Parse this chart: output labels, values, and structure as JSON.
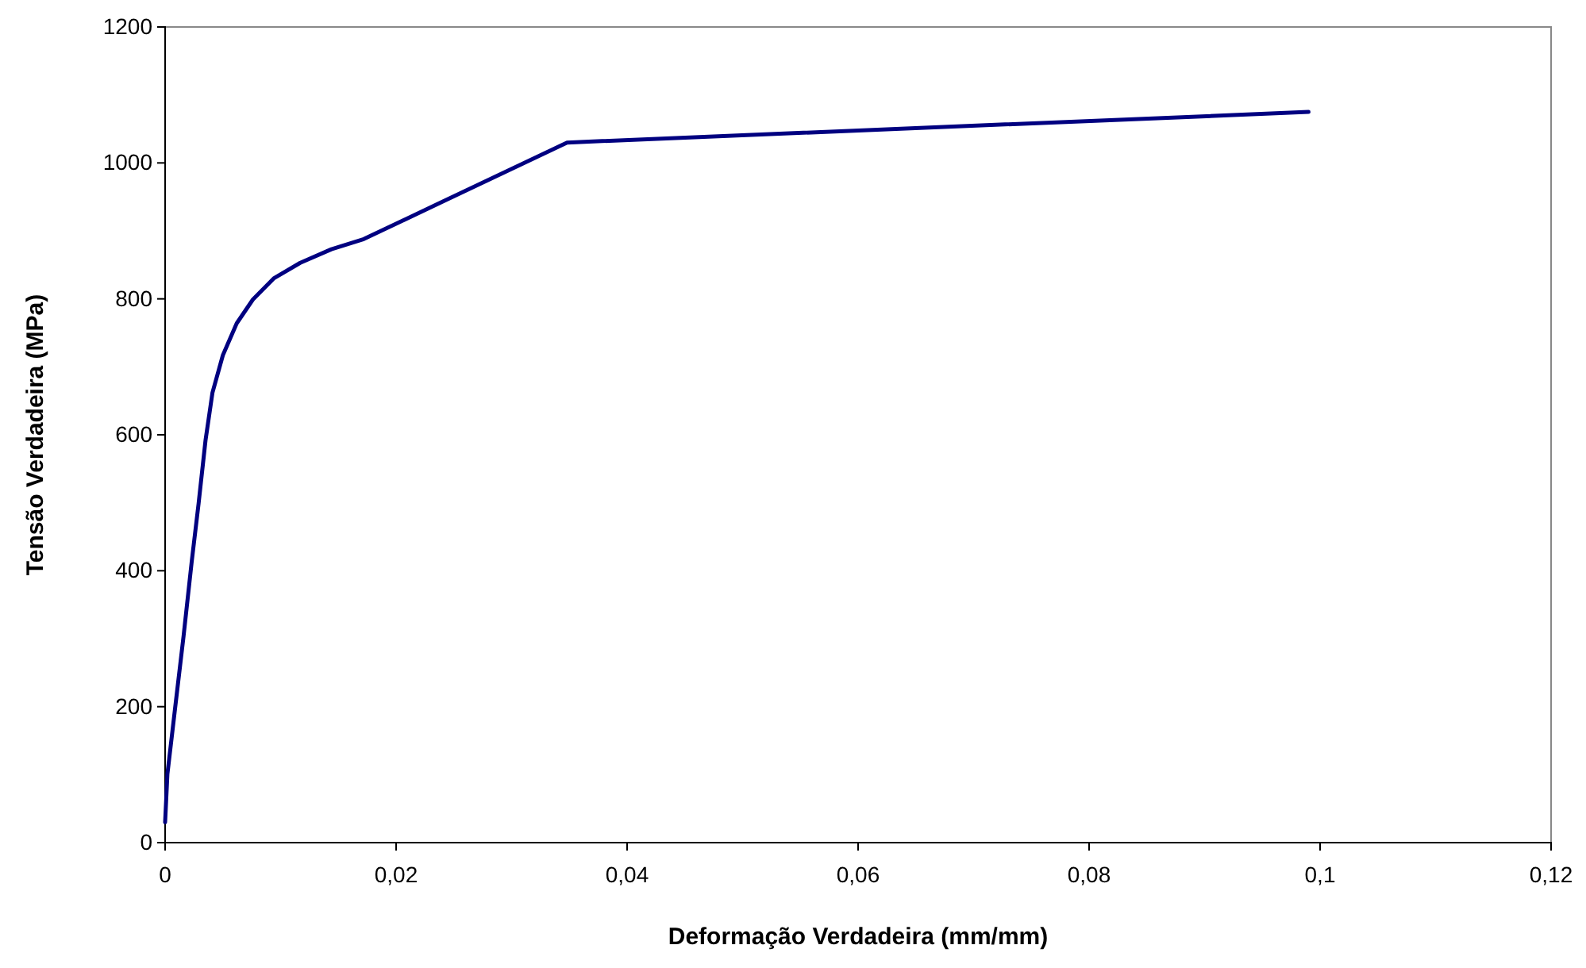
{
  "chart_data": {
    "type": "line",
    "xlabel": "Deformação Verdadeira (mm/mm)",
    "ylabel": "Tensão Verdadeira (MPa)",
    "series": [
      {
        "color": "#000080",
        "x": [
          0,
          0.0002,
          0.0009,
          0.0016,
          0.0023,
          0.0029,
          0.0035,
          0.0041,
          0.005,
          0.0062,
          0.0076,
          0.0094,
          0.0117,
          0.0144,
          0.0172,
          0.0348,
          0.099
        ],
        "values": [
          30,
          101,
          203,
          304,
          413,
          499,
          592,
          662,
          717,
          764,
          799,
          830,
          853,
          873,
          888,
          1030,
          1075
        ]
      }
    ],
    "xlim": [
      0,
      0.12
    ],
    "xticks": [
      {
        "value": 0,
        "label": "0"
      },
      {
        "value": 0.02,
        "label": "0,02"
      },
      {
        "value": 0.04,
        "label": "0,04"
      },
      {
        "value": 0.06,
        "label": "0,06"
      },
      {
        "value": 0.08,
        "label": "0,08"
      },
      {
        "value": 0.1,
        "label": "0,1"
      },
      {
        "value": 0.12,
        "label": "0,12"
      }
    ],
    "ylim": [
      0,
      1200
    ],
    "yticks": [
      0,
      200,
      400,
      600,
      800,
      1000,
      1200
    ],
    "grid": false,
    "marker": "none",
    "line_style": "solid"
  }
}
